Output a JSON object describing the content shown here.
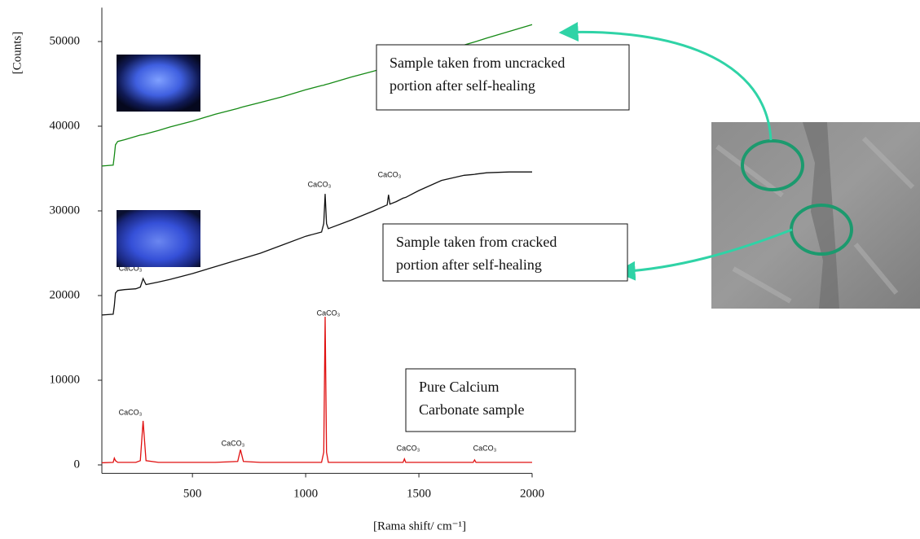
{
  "chart_data": {
    "type": "line",
    "y_label": "[Counts]",
    "x_label": "[Rama shift/ cm⁻¹]",
    "xlim": [
      100,
      2000
    ],
    "ylim": [
      -1000,
      54000
    ],
    "xticks": [
      500,
      1000,
      1500,
      2000
    ],
    "yticks": [
      0,
      10000,
      20000,
      30000,
      40000,
      50000
    ],
    "x": [
      100,
      150,
      155,
      160,
      170,
      200,
      250,
      270,
      282,
      295,
      350,
      400,
      500,
      600,
      700,
      712,
      725,
      800,
      900,
      1000,
      1070,
      1080,
      1086,
      1092,
      1100,
      1200,
      1300,
      1350,
      1360,
      1366,
      1372,
      1400,
      1430,
      1436,
      1442,
      1500,
      1600,
      1700,
      1740,
      1746,
      1752,
      1800,
      1900,
      2000
    ],
    "series": [
      {
        "name": "Sample taken from uncracked portion after self-healing",
        "color": "#168a16",
        "values": [
          35300,
          35400,
          36500,
          37800,
          38200,
          38400,
          38800,
          38950,
          39000,
          39100,
          39500,
          39900,
          40600,
          41400,
          42100,
          42200,
          42300,
          42800,
          43500,
          44300,
          44800,
          44850,
          44900,
          44950,
          45000,
          45800,
          46500,
          46900,
          47000,
          47050,
          47100,
          47300,
          47500,
          47550,
          47600,
          48000,
          48800,
          49600,
          49900,
          49950,
          50000,
          50400,
          51200,
          52000
        ]
      },
      {
        "name": "Sample taken from cracked portion after self-healing",
        "color": "#111111",
        "values": [
          17700,
          17800,
          18800,
          20300,
          20600,
          20700,
          20800,
          21000,
          22000,
          21300,
          21600,
          21900,
          22600,
          23400,
          24200,
          24300,
          24400,
          25000,
          26000,
          27000,
          27500,
          28500,
          32000,
          28500,
          27900,
          28900,
          30000,
          30600,
          30700,
          31900,
          30800,
          31100,
          31500,
          31550,
          31600,
          32400,
          33600,
          34200,
          34300,
          34320,
          34350,
          34500,
          34600,
          34600
        ]
      },
      {
        "name": "Pure Calcium Carbonate sample",
        "color": "#e01010",
        "values": [
          250,
          300,
          800,
          500,
          300,
          300,
          300,
          500,
          5200,
          500,
          300,
          300,
          300,
          300,
          400,
          1800,
          400,
          300,
          300,
          300,
          300,
          1500,
          17500,
          1500,
          300,
          300,
          300,
          300,
          300,
          300,
          300,
          300,
          300,
          700,
          300,
          300,
          300,
          300,
          300,
          600,
          300,
          300,
          300,
          300
        ]
      }
    ],
    "annotations": [
      "CaCO₃",
      "CaCO₃",
      "CaCO₃",
      "CaCO₃",
      "CaCO₃",
      "CaCO₃",
      "CaCO₃",
      "CaCO₃"
    ],
    "boxes": [
      [
        "Sample taken from uncracked",
        "portion after self-healing"
      ],
      [
        "Sample taken from cracked",
        "portion after self-healing"
      ],
      [
        "Pure Calcium",
        "Carbonate sample"
      ]
    ]
  }
}
